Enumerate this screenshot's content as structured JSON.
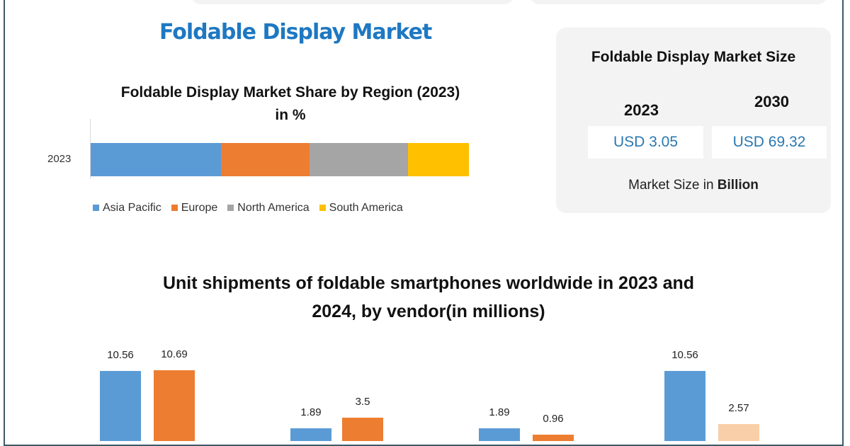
{
  "title": "Foldable Display Market",
  "chart_data": [
    {
      "type": "bar",
      "orientation": "horizontal-stacked",
      "title": "Foldable Display Market Share by Region (2023) in %",
      "title_lines": [
        "Foldable Display Market Share by Region (2023)",
        "in %"
      ],
      "categories": [
        "2023"
      ],
      "series": [
        {
          "name": "Asia Pacific",
          "values": [
            34.5
          ],
          "color": "#5b9bd5"
        },
        {
          "name": "Europe",
          "values": [
            23.4
          ],
          "color": "#ed7d31"
        },
        {
          "name": "North America",
          "values": [
            26.0
          ],
          "color": "#a5a5a5"
        },
        {
          "name": "South America",
          "values": [
            16.1
          ],
          "color": "#ffc000"
        }
      ],
      "legend": "bottom"
    },
    {
      "type": "bar",
      "title_lines": [
        "Unit shipments of foldable smartphones  worldwide in 2023 and",
        "2024, by vendor(in  millions)"
      ],
      "groups": [
        {
          "values": [
            10.56,
            10.69
          ],
          "labels": [
            "10.56",
            "10.69"
          ],
          "colors": [
            "#5b9bd5",
            "#ed7d31"
          ]
        },
        {
          "values": [
            1.89,
            3.5
          ],
          "labels": [
            "1.89",
            "3.5"
          ],
          "colors": [
            "#5b9bd5",
            "#ed7d31"
          ]
        },
        {
          "values": [
            1.89,
            0.96
          ],
          "labels": [
            "1.89",
            "0.96"
          ],
          "colors": [
            "#5b9bd5",
            "#ed7d31"
          ]
        },
        {
          "values": [
            10.56,
            2.57
          ],
          "labels": [
            "10.56",
            "2.57"
          ],
          "colors": [
            "#5b9bd5",
            "#f8cfa8"
          ]
        }
      ]
    }
  ],
  "market_size": {
    "heading": "Foldable Display Market Size",
    "years": [
      "2023",
      "2030"
    ],
    "values": [
      "USD 3.05",
      "USD 69.32"
    ],
    "note_prefix": "Market Size in ",
    "note_bold": "Billion"
  }
}
